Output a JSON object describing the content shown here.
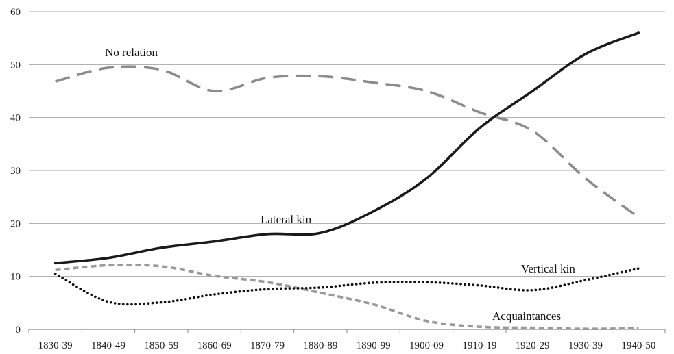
{
  "chart_data": {
    "type": "line",
    "title": "",
    "xlabel": "",
    "ylabel": "",
    "categories": [
      "1830-39",
      "1840-49",
      "1850-59",
      "1860-69",
      "1870-79",
      "1880-89",
      "1890-99",
      "1900-09",
      "1910-19",
      "1920-29",
      "1930-39",
      "1940-50"
    ],
    "ylim": [
      0,
      60
    ],
    "yticks": [
      "0",
      "10",
      "20",
      "30",
      "40",
      "50",
      "60"
    ],
    "grid": true,
    "legend": "none",
    "series": [
      {
        "name": "No relation",
        "values": [
          46.8,
          49.4,
          49.0,
          45.0,
          47.5,
          47.8,
          46.6,
          45.0,
          41.0,
          37.5,
          28.5,
          21.2
        ],
        "color": "#8c8c8c",
        "style": "dashed"
      },
      {
        "name": "Lateral kin",
        "values": [
          12.5,
          13.5,
          15.4,
          16.6,
          18.0,
          18.2,
          22.3,
          28.5,
          38.0,
          45.0,
          52.0,
          56.0
        ],
        "color": "#1a1a1a",
        "style": "solid"
      },
      {
        "name": "Vertical kin",
        "values": [
          10.5,
          5.2,
          5.1,
          6.6,
          7.6,
          7.9,
          8.8,
          8.9,
          8.3,
          7.4,
          9.3,
          11.5
        ],
        "color": "#111111",
        "style": "dotted"
      },
      {
        "name": "Acquaintances",
        "values": [
          11.2,
          12.1,
          11.9,
          10.1,
          8.9,
          6.9,
          4.7,
          1.6,
          0.5,
          0.3,
          0.1,
          0.2
        ],
        "color": "#999999",
        "style": "short-dashed"
      }
    ]
  }
}
